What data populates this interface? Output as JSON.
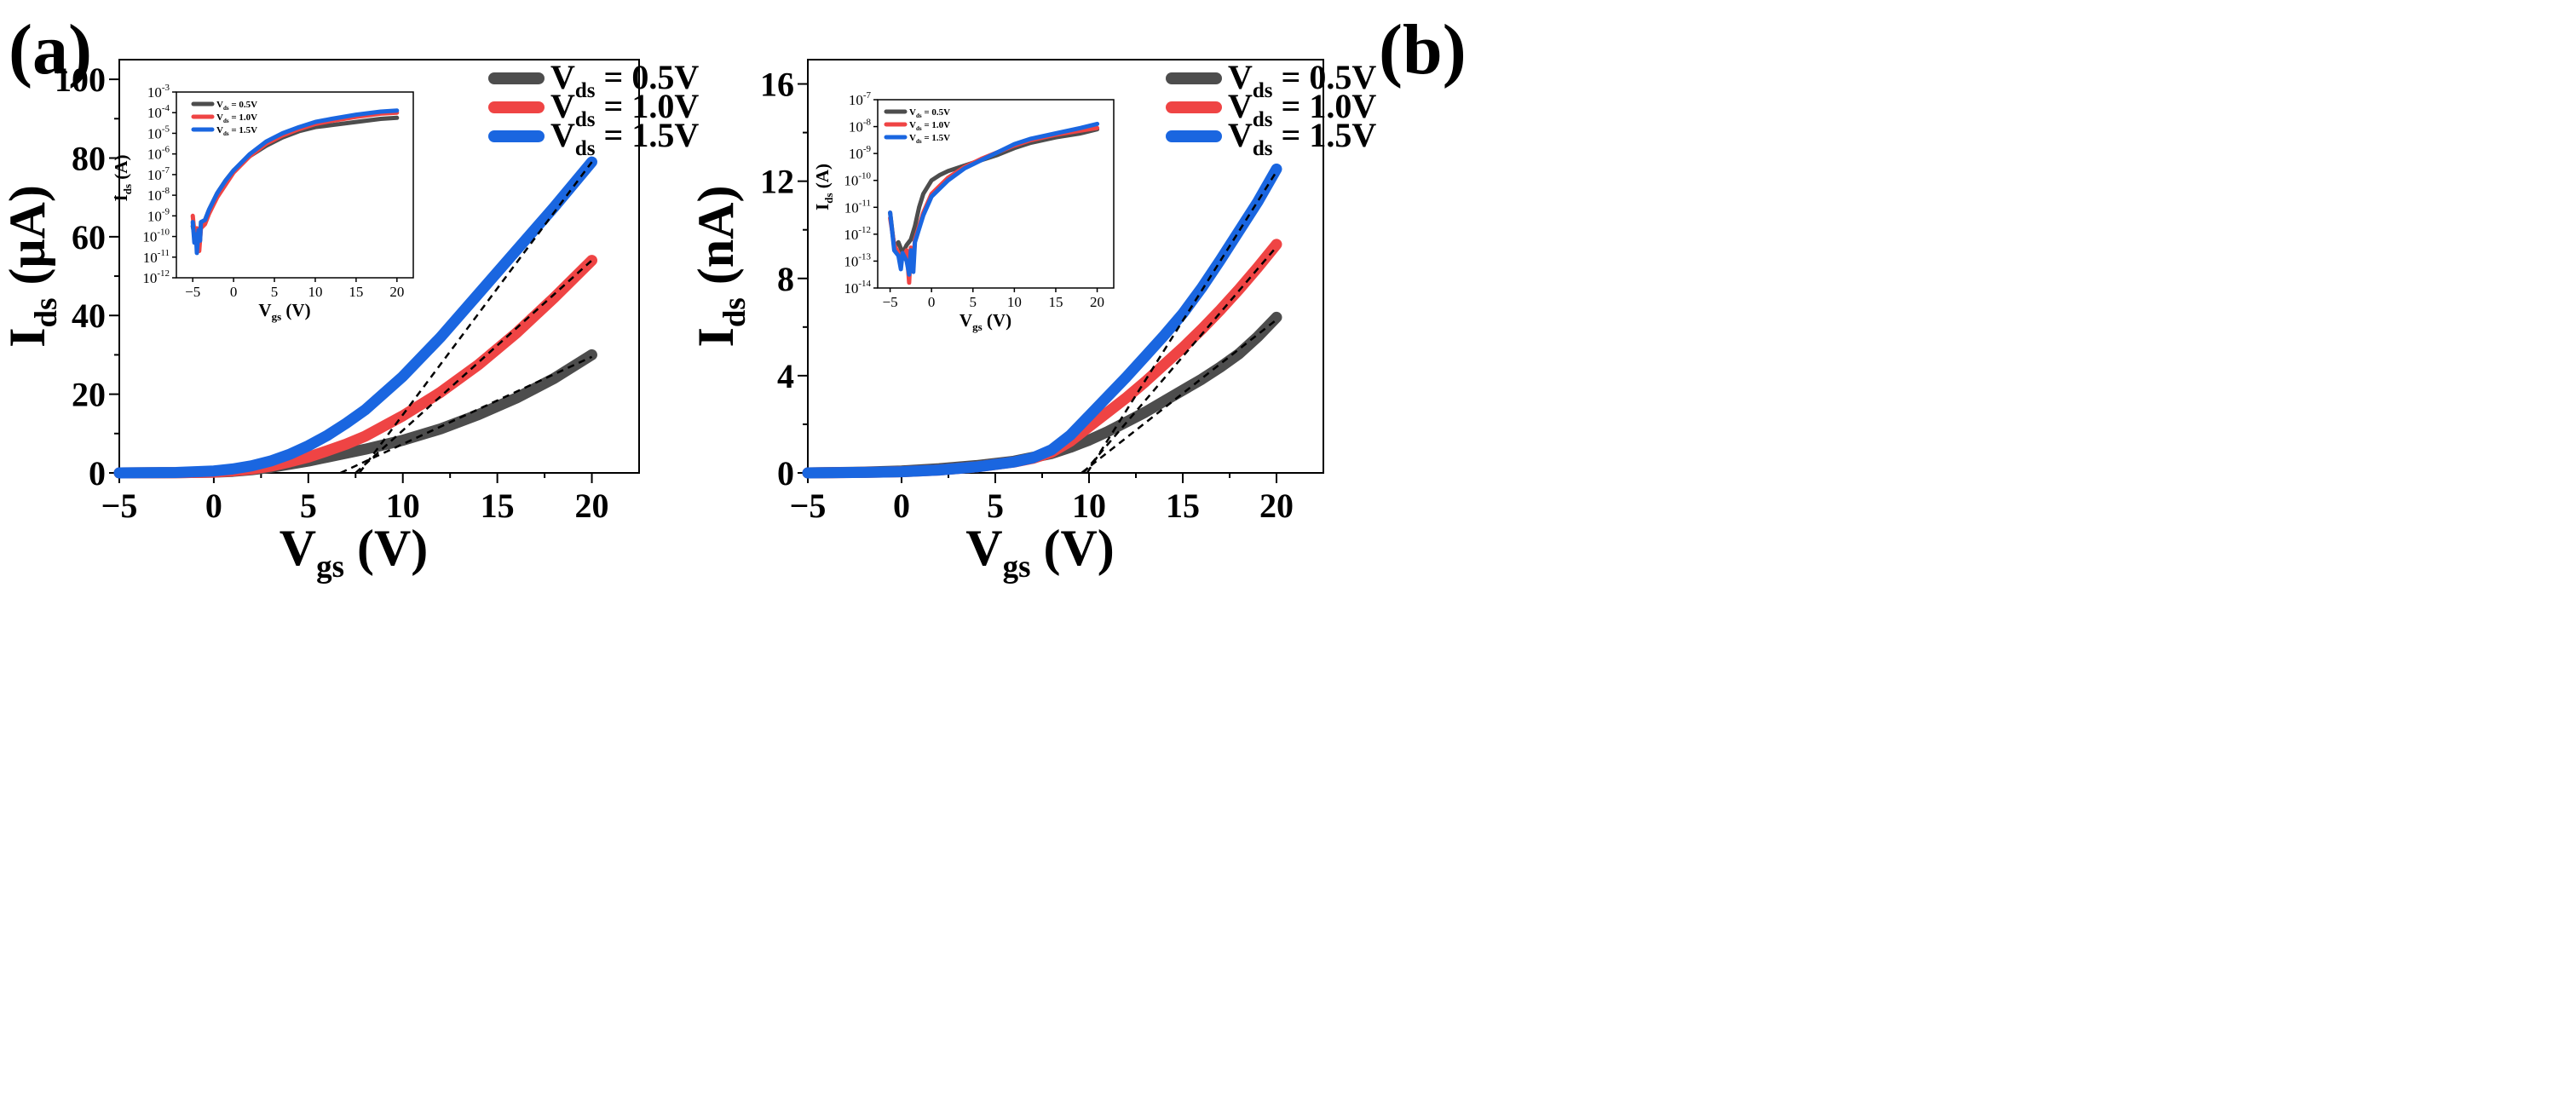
{
  "colors": {
    "gray": "#4d4d4d",
    "red": "#ef4444",
    "blue": "#1a66e0",
    "axis": "#000000",
    "fit": "#000000"
  },
  "chart_data": [
    {
      "panel_label": "(a)",
      "type": "line",
      "x_var": "V",
      "x_sub": "gs",
      "x_unit": " (V)",
      "y_var": "I",
      "y_sub": "ds",
      "y_unit": " (μA)",
      "xlim": [
        -5,
        22.5
      ],
      "ylim": [
        0,
        105
      ],
      "xticks": [
        "−5",
        "0",
        "5",
        "10",
        "15",
        "20"
      ],
      "xtick_values": [
        -5,
        0,
        5,
        10,
        15,
        20
      ],
      "yticks": [
        "0",
        "20",
        "40",
        "60",
        "80",
        "100"
      ],
      "ytick_values": [
        0,
        20,
        40,
        60,
        80,
        100
      ],
      "legend": [
        {
          "var": "V",
          "sub": "ds",
          "text": " = 0.5V",
          "color_key": "gray"
        },
        {
          "var": "V",
          "sub": "ds",
          "text": " = 1.0V",
          "color_key": "red"
        },
        {
          "var": "V",
          "sub": "ds",
          "text": " = 1.5V",
          "color_key": "blue"
        }
      ],
      "series": [
        {
          "name": "Vds = 0.5V",
          "color_key": "gray",
          "x": [
            -5,
            -2,
            0,
            1,
            2,
            3,
            4,
            5,
            6,
            7,
            8,
            10,
            12,
            14,
            16,
            18,
            20
          ],
          "y": [
            0,
            0.05,
            0.2,
            0.4,
            0.8,
            1.4,
            2.2,
            3.0,
            4.0,
            5.0,
            6.0,
            8.3,
            11.2,
            14.8,
            19.0,
            24.0,
            30.0
          ]
        },
        {
          "name": "Vds = 1.0V",
          "color_key": "red",
          "x": [
            -5,
            -2,
            0,
            1,
            2,
            3,
            4,
            5,
            6,
            7,
            8,
            10,
            12,
            14,
            16,
            18,
            20
          ],
          "y": [
            0,
            0.05,
            0.2,
            0.5,
            1.0,
            1.7,
            2.8,
            4.0,
            5.6,
            7.3,
            9.3,
            14.5,
            20.5,
            27.5,
            35.5,
            44.5,
            54.0
          ]
        },
        {
          "name": "Vds = 1.5V",
          "color_key": "blue",
          "x": [
            -5,
            -2,
            0,
            1,
            2,
            3,
            4,
            5,
            6,
            7,
            8,
            10,
            12,
            14,
            16,
            18,
            20
          ],
          "y": [
            0,
            0.1,
            0.5,
            1.0,
            1.8,
            3.0,
            4.7,
            6.9,
            9.5,
            12.6,
            16.0,
            24.5,
            34.5,
            45.5,
            56.5,
            67.5,
            79.0
          ]
        }
      ],
      "fit_lines": [
        {
          "x": [
            6.7,
            20
          ],
          "y": [
            0,
            29.5
          ]
        },
        {
          "x": [
            7.5,
            20
          ],
          "y": [
            0,
            54.0
          ]
        },
        {
          "x": [
            7.7,
            20
          ],
          "y": [
            0,
            79.0
          ]
        }
      ],
      "inset": {
        "type": "line",
        "yscale": "log",
        "x_var": "V",
        "x_sub": "gs",
        "x_unit": " (V)",
        "y_var": "I",
        "y_sub": "ds",
        "y_unit": " (A)",
        "xlim": [
          -7,
          22
        ],
        "ylim_exp": [
          -12,
          -3
        ],
        "xticks": [
          "−5",
          "0",
          "5",
          "10",
          "15",
          "20"
        ],
        "xtick_values": [
          -5,
          0,
          5,
          10,
          15,
          20
        ],
        "ytick_exps": [
          "-12",
          "-11",
          "-10",
          "-9",
          "-8",
          "-7",
          "-6",
          "-5",
          "-4",
          "-3"
        ],
        "ytick_exp_values": [
          -12,
          -11,
          -10,
          -9,
          -8,
          -7,
          -6,
          -5,
          -4,
          -3
        ],
        "ytick_base": "10",
        "legend": [
          {
            "var": "V",
            "sub": "ds",
            "text": " = 0.5V",
            "color_key": "gray"
          },
          {
            "var": "V",
            "sub": "ds",
            "text": " = 1.0V",
            "color_key": "red"
          },
          {
            "var": "V",
            "sub": "ds",
            "text": " = 1.5V",
            "color_key": "blue"
          }
        ],
        "series": [
          {
            "name": "Vds = 0.5V",
            "color_key": "gray",
            "x": [
              -5,
              -4.7,
              -4.5,
              -4.3,
              -4,
              -3.5,
              -3,
              -2,
              -1,
              0,
              2,
              4,
              6,
              8,
              10,
              12,
              15,
              18,
              20
            ],
            "y_log": [
              -9.5,
              -10.1,
              -9.8,
              -10.6,
              -9.5,
              -9.2,
              -8.7,
              -7.9,
              -7.3,
              -6.8,
              -6.1,
              -5.6,
              -5.2,
              -4.9,
              -4.7,
              -4.6,
              -4.45,
              -4.3,
              -4.25
            ]
          },
          {
            "name": "Vds = 1.0V",
            "color_key": "red",
            "x": [
              -5,
              -4.7,
              -4.5,
              -4.2,
              -4,
              -3.5,
              -3,
              -2,
              -1,
              0,
              2,
              4,
              6,
              8,
              10,
              12,
              15,
              18,
              20
            ],
            "y_log": [
              -9.0,
              -10.2,
              -9.6,
              -10.7,
              -9.6,
              -9.4,
              -8.9,
              -8.1,
              -7.5,
              -6.9,
              -6.1,
              -5.5,
              -5.1,
              -4.8,
              -4.55,
              -4.4,
              -4.2,
              -4.05,
              -4.0
            ]
          },
          {
            "name": "Vds = 1.5V",
            "color_key": "blue",
            "x": [
              -5,
              -4.8,
              -4.6,
              -4.5,
              -4.3,
              -4.1,
              -4,
              -3.5,
              -3,
              -2,
              -1,
              0,
              2,
              4,
              6,
              8,
              10,
              12,
              15,
              18,
              20
            ],
            "y_log": [
              -9.3,
              -10.3,
              -9.9,
              -10.8,
              -9.7,
              -10.2,
              -9.3,
              -9.2,
              -8.7,
              -7.9,
              -7.3,
              -6.8,
              -6.0,
              -5.4,
              -5.0,
              -4.7,
              -4.45,
              -4.3,
              -4.1,
              -3.95,
              -3.9
            ]
          }
        ]
      }
    },
    {
      "panel_label": "(b)",
      "type": "line",
      "x_var": "V",
      "x_sub": "gs",
      "x_unit": " (V)",
      "y_var": "I",
      "y_sub": "ds",
      "y_unit": " (nA)",
      "xlim": [
        -5,
        22.5
      ],
      "ylim": [
        0,
        17
      ],
      "xticks": [
        "−5",
        "0",
        "5",
        "10",
        "15",
        "20"
      ],
      "xtick_values": [
        -5,
        0,
        5,
        10,
        15,
        20
      ],
      "yticks": [
        "0",
        "4",
        "8",
        "12",
        "16"
      ],
      "ytick_values": [
        0,
        4,
        8,
        12,
        16
      ],
      "legend": [
        {
          "var": "V",
          "sub": "ds",
          "text": " = 0.5V",
          "color_key": "gray"
        },
        {
          "var": "V",
          "sub": "ds",
          "text": " = 1.0V",
          "color_key": "red"
        },
        {
          "var": "V",
          "sub": "ds",
          "text": " = 1.5V",
          "color_key": "blue"
        }
      ],
      "series": [
        {
          "name": "Vds = 0.5V",
          "color_key": "gray",
          "x": [
            -5,
            -2,
            0,
            2,
            4,
            6,
            8,
            9,
            10,
            11,
            12,
            13,
            14,
            15,
            16,
            17,
            18,
            19,
            20
          ],
          "y": [
            0,
            0.03,
            0.08,
            0.17,
            0.3,
            0.48,
            0.8,
            1.05,
            1.35,
            1.7,
            2.1,
            2.5,
            2.95,
            3.4,
            3.85,
            4.35,
            4.9,
            5.6,
            6.4
          ]
        },
        {
          "name": "Vds = 1.0V",
          "color_key": "red",
          "x": [
            -5,
            -2,
            0,
            2,
            4,
            6,
            7,
            8,
            9,
            10,
            11,
            12,
            13,
            14,
            15,
            16,
            17,
            18,
            19,
            20
          ],
          "y": [
            0,
            0.02,
            0.05,
            0.12,
            0.25,
            0.45,
            0.6,
            0.85,
            1.3,
            1.9,
            2.5,
            3.1,
            3.75,
            4.45,
            5.15,
            5.9,
            6.7,
            7.55,
            8.45,
            9.4
          ]
        },
        {
          "name": "Vds = 1.5V",
          "color_key": "blue",
          "x": [
            -5,
            -2,
            0,
            2,
            4,
            6,
            7,
            8,
            9,
            10,
            11,
            12,
            13,
            14,
            15,
            16,
            17,
            18,
            19,
            20
          ],
          "y": [
            0,
            0.02,
            0.05,
            0.12,
            0.25,
            0.45,
            0.62,
            0.95,
            1.55,
            2.35,
            3.15,
            3.95,
            4.8,
            5.65,
            6.55,
            7.6,
            8.75,
            9.95,
            11.15,
            12.5
          ]
        }
      ],
      "fit_lines": [
        {
          "x": [
            9.6,
            20
          ],
          "y": [
            0,
            6.3
          ]
        },
        {
          "x": [
            9.7,
            20
          ],
          "y": [
            0,
            9.3
          ]
        },
        {
          "x": [
            9.9,
            20
          ],
          "y": [
            0,
            12.4
          ]
        }
      ],
      "inset": {
        "type": "line",
        "yscale": "log",
        "x_var": "V",
        "x_sub": "gs",
        "x_unit": " (V)",
        "y_var": "I",
        "y_sub": "ds",
        "y_unit": " (A)",
        "xlim": [
          -6.5,
          22
        ],
        "ylim_exp": [
          -14,
          -7
        ],
        "xticks": [
          "−5",
          "0",
          "5",
          "10",
          "15",
          "20"
        ],
        "xtick_values": [
          -5,
          0,
          5,
          10,
          15,
          20
        ],
        "ytick_exps": [
          "-14",
          "-13",
          "-12",
          "-11",
          "-10",
          "-9",
          "-8",
          "-7"
        ],
        "ytick_exp_values": [
          -14,
          -13,
          -12,
          -11,
          -10,
          -9,
          -8,
          -7
        ],
        "ytick_base": "10",
        "legend": [
          {
            "var": "V",
            "sub": "ds",
            "text": " = 0.5V",
            "color_key": "gray"
          },
          {
            "var": "V",
            "sub": "ds",
            "text": " = 1.0V",
            "color_key": "red"
          },
          {
            "var": "V",
            "sub": "ds",
            "text": " = 1.5V",
            "color_key": "blue"
          }
        ],
        "series": [
          {
            "name": "Vds = 0.5V",
            "color_key": "gray",
            "x": [
              -5,
              -4.5,
              -4,
              -3.5,
              -3,
              -2.5,
              -2,
              -1.5,
              -1,
              0,
              1,
              2,
              4,
              6,
              8,
              10,
              12,
              15,
              18,
              20
            ],
            "y_log": [
              -11.2,
              -12.5,
              -12.3,
              -12.7,
              -12.4,
              -12.2,
              -11.7,
              -11.0,
              -10.5,
              -10.0,
              -9.8,
              -9.65,
              -9.45,
              -9.25,
              -9.05,
              -8.8,
              -8.6,
              -8.4,
              -8.25,
              -8.1
            ]
          },
          {
            "name": "Vds = 1.0V",
            "color_key": "red",
            "x": [
              -5,
              -4.5,
              -4,
              -3.5,
              -3,
              -2.7,
              -2.5,
              -2.2,
              -2,
              -1.5,
              -1,
              0,
              2,
              4,
              6,
              8,
              10,
              12,
              15,
              18,
              20
            ],
            "y_log": [
              -11.4,
              -12.4,
              -12.7,
              -12.9,
              -12.6,
              -13.8,
              -12.5,
              -13.1,
              -12.2,
              -11.7,
              -11.2,
              -10.5,
              -9.9,
              -9.5,
              -9.2,
              -8.95,
              -8.7,
              -8.5,
              -8.3,
              -8.15,
              -8.05
            ]
          },
          {
            "name": "Vds = 1.5V",
            "color_key": "blue",
            "x": [
              -5,
              -4.5,
              -4,
              -3.7,
              -3.5,
              -3,
              -2.7,
              -2.5,
              -2.2,
              -2,
              -1.5,
              -1,
              0,
              2,
              4,
              6,
              8,
              10,
              12,
              15,
              18,
              20
            ],
            "y_log": [
              -11.2,
              -12.6,
              -12.8,
              -13.3,
              -12.7,
              -13.0,
              -13.5,
              -12.6,
              -13.4,
              -12.3,
              -11.8,
              -11.3,
              -10.6,
              -10.0,
              -9.55,
              -9.25,
              -8.95,
              -8.65,
              -8.45,
              -8.25,
              -8.05,
              -7.9
            ]
          }
        ]
      }
    }
  ]
}
